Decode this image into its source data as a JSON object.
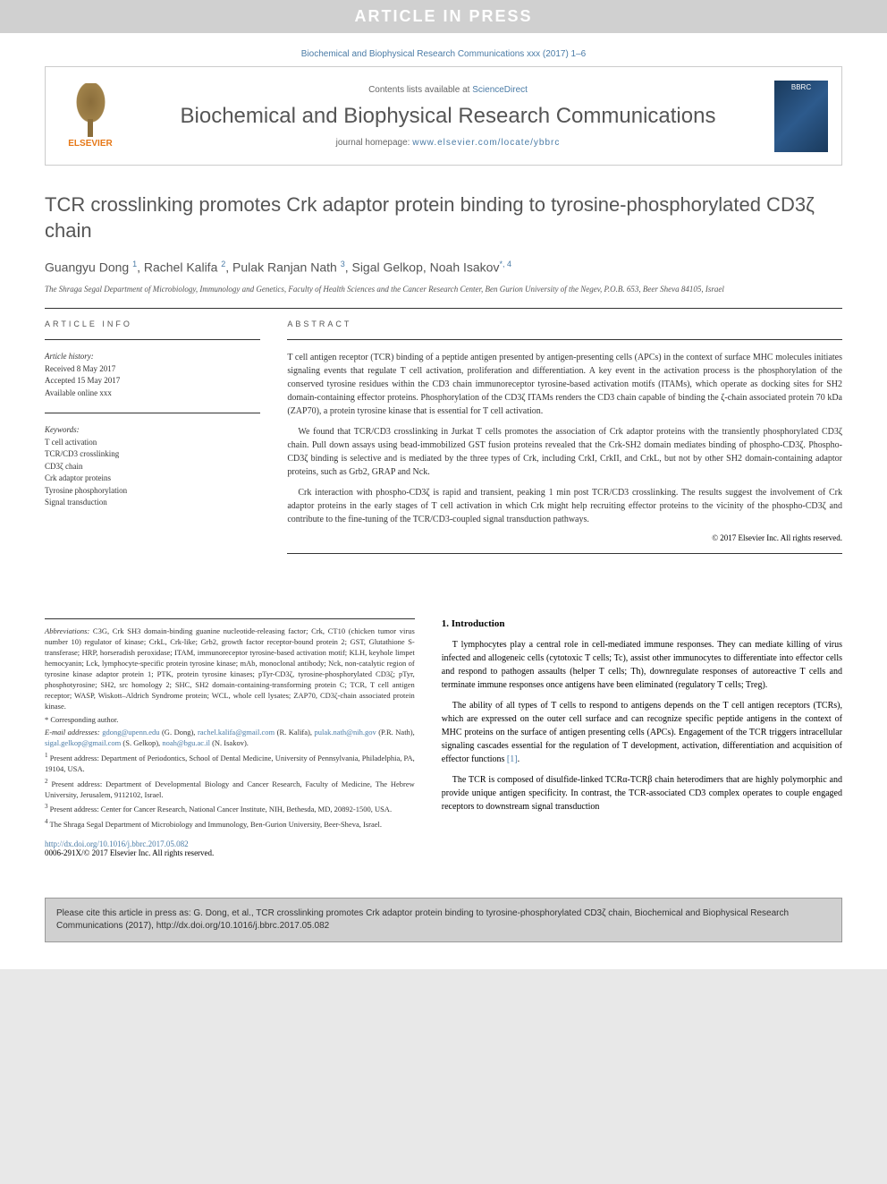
{
  "banner": {
    "in_press": "ARTICLE IN PRESS",
    "top_ref": "Biochemical and Biophysical Research Communications xxx (2017) 1–6",
    "contents_prefix": "Contents lists available at ",
    "contents_link": "ScienceDirect",
    "journal_name": "Biochemical and Biophysical Research Communications",
    "homepage_prefix": "journal homepage: ",
    "homepage_url": "www.elsevier.com/locate/ybbrc",
    "publisher": "ELSEVIER",
    "cover_abbr": "BBRC"
  },
  "title": "TCR crosslinking promotes Crk adaptor protein binding to tyrosine-phosphorylated CD3ζ chain",
  "authors_html": "Guangyu Dong <sup>1</sup>, Rachel Kalifa <sup>2</sup>, Pulak Ranjan Nath <sup>3</sup>, Sigal Gelkop, Noah Isakov<sup>*, 4</sup>",
  "affiliation": "The Shraga Segal Department of Microbiology, Immunology and Genetics, Faculty of Health Sciences and the Cancer Research Center, Ben Gurion University of the Negev, P.O.B. 653, Beer Sheva 84105, Israel",
  "article_info": {
    "head": "ARTICLE INFO",
    "history_label": "Article history:",
    "received": "Received 8 May 2017",
    "accepted": "Accepted 15 May 2017",
    "online": "Available online xxx",
    "keywords_label": "Keywords:",
    "keywords": [
      "T cell activation",
      "TCR/CD3 crosslinking",
      "CD3ζ chain",
      "Crk adaptor proteins",
      "Tyrosine phosphorylation",
      "Signal transduction"
    ]
  },
  "abstract": {
    "head": "ABSTRACT",
    "p1": "T cell antigen receptor (TCR) binding of a peptide antigen presented by antigen-presenting cells (APCs) in the context of surface MHC molecules initiates signaling events that regulate T cell activation, proliferation and differentiation. A key event in the activation process is the phosphorylation of the conserved tyrosine residues within the CD3 chain immunoreceptor tyrosine-based activation motifs (ITAMs), which operate as docking sites for SH2 domain-containing effector proteins. Phosphorylation of the CD3ζ ITAMs renders the CD3 chain capable of binding the ζ-chain associated protein 70 kDa (ZAP70), a protein tyrosine kinase that is essential for T cell activation.",
    "p2": "We found that TCR/CD3 crosslinking in Jurkat T cells promotes the association of Crk adaptor proteins with the transiently phosphorylated CD3ζ chain. Pull down assays using bead-immobilized GST fusion proteins revealed that the Crk-SH2 domain mediates binding of phospho-CD3ζ. Phospho-CD3ζ binding is selective and is mediated by the three types of Crk, including CrkI, CrkII, and CrkL, but not by other SH2 domain-containing adaptor proteins, such as Grb2, GRAP and Nck.",
    "p3": "Crk interaction with phospho-CD3ζ is rapid and transient, peaking 1 min post TCR/CD3 crosslinking. The results suggest the involvement of Crk adaptor proteins in the early stages of T cell activation in which Crk might help recruiting effector proteins to the vicinity of the phospho-CD3ζ and contribute to the fine-tuning of the TCR/CD3-coupled signal transduction pathways.",
    "copyright": "© 2017 Elsevier Inc. All rights reserved."
  },
  "footnotes": {
    "abbrev_label": "Abbreviations:",
    "abbrev": " C3G, Crk SH3 domain-binding guanine nucleotide-releasing factor; Crk, CT10 (chicken tumor virus number 10) regulator of kinase; CrkL, Crk-like; Grb2, growth factor receptor-bound protein 2; GST, Glutathione S-transferase; HRP, horseradish peroxidase; ITAM, immunoreceptor tyrosine-based activation motif; KLH, keyhole limpet hemocyanin; Lck, lymphocyte-specific protein tyrosine kinase; mAb, monoclonal antibody; Nck, non-catalytic region of tyrosine kinase adaptor protein 1; PTK, protein tyrosine kinases; pTyr-CD3ζ, tyrosine-phosphorylated CD3ζ; pTyr, phosphotyrosine; SH2, src homology 2; SHC, SH2 domain-containing-transforming protein C; TCR, T cell antigen receptor; WASP, Wiskott–Aldrich Syndrome protein; WCL, whole cell lysates; ZAP70, CD3ζ-chain associated protein kinase.",
    "corr": "* Corresponding author.",
    "email_label": "E-mail addresses:",
    "emails": " gdong@upenn.edu (G. Dong), rachel.kalifa@gmail.com (R. Kalifa), pulak.nath@nih.gov (P.R. Nath), sigal.gelkop@gmail.com (S. Gelkop), noah@bgu.ac.il (N. Isakov).",
    "fn1": "Present address: Department of Periodontics, School of Dental Medicine, University of Pennsylvania, Philadelphia, PA, 19104, USA.",
    "fn2": "Present address: Department of Developmental Biology and Cancer Research, Faculty of Medicine, The Hebrew University, Jerusalem, 9112102, Israel.",
    "fn3": "Present address: Center for Cancer Research, National Cancer Institute, NIH, Bethesda, MD, 20892-1500, USA.",
    "fn4": "The Shraga Segal Department of Microbiology and Immunology, Ben-Gurion University, Beer-Sheva, Israel.",
    "doi": "http://dx.doi.org/10.1016/j.bbrc.2017.05.082",
    "issn": "0006-291X/© 2017 Elsevier Inc. All rights reserved."
  },
  "intro": {
    "head": "1. Introduction",
    "p1": "T lymphocytes play a central role in cell-mediated immune responses. They can mediate killing of virus infected and allogeneic cells (cytotoxic T cells; Tc), assist other immunocytes to differentiate into effector cells and respond to pathogen assaults (helper T cells; Th), downregulate responses of autoreactive T cells and terminate immune responses once antigens have been eliminated (regulatory T cells; Treg).",
    "p2": "The ability of all types of T cells to respond to antigens depends on the T cell antigen receptors (TCRs), which are expressed on the outer cell surface and can recognize specific peptide antigens in the context of MHC proteins on the surface of antigen presenting cells (APCs). Engagement of the TCR triggers intracellular signaling cascades essential for the regulation of T development, activation, differentiation and acquisition of effector functions [1].",
    "p3": "The TCR is composed of disulfide-linked TCRα-TCRβ chain heterodimers that are highly polymorphic and provide unique antigen specificity. In contrast, the TCR-associated CD3 complex operates to couple engaged receptors to downstream signal transduction"
  },
  "citation": "Please cite this article in press as: G. Dong, et al., TCR crosslinking promotes Crk adaptor protein binding to tyrosine-phosphorylated CD3ζ chain, Biochemical and Biophysical Research Communications (2017), http://dx.doi.org/10.1016/j.bbrc.2017.05.082"
}
